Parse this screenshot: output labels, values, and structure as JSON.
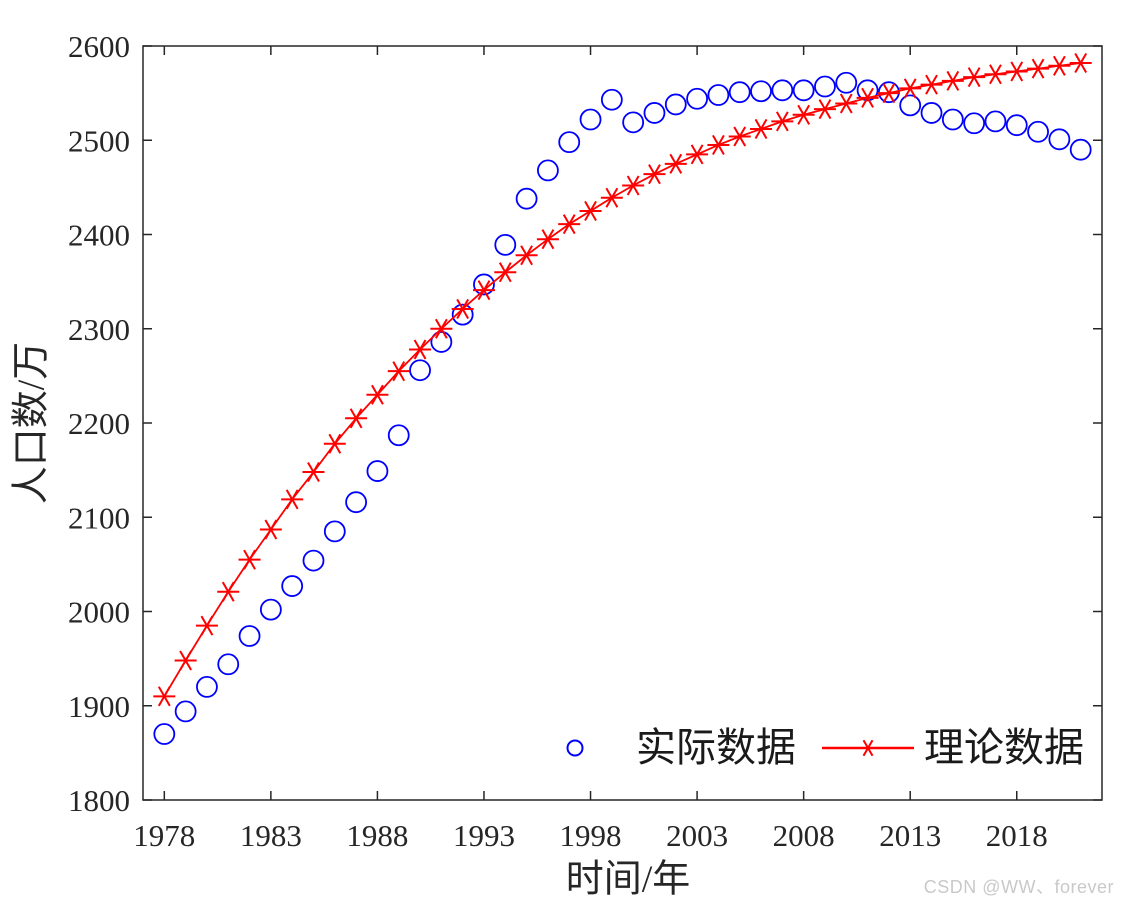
{
  "watermark": "CSDN @WW、forever",
  "colors": {
    "background": "#ffffff",
    "axis": "#262626",
    "actual": "#0000ff",
    "theory": "#ff0000",
    "watermark": "#c9c9c9"
  },
  "legend": {
    "actual_label": "实际数据",
    "theory_label": "理论数据",
    "position": "inside-bottom, no box"
  },
  "chart_data": {
    "type": "scatter",
    "title": "",
    "xlabel": "时间/年",
    "ylabel": "人口数/万",
    "xlim": [
      1977,
      2022
    ],
    "ylim": [
      1800,
      2600
    ],
    "xticks": [
      1978,
      1983,
      1988,
      1993,
      1998,
      2003,
      2008,
      2013,
      2018
    ],
    "yticks": [
      1800,
      1900,
      2000,
      2100,
      2200,
      2300,
      2400,
      2500,
      2600
    ],
    "grid": false,
    "x": [
      1978,
      1979,
      1980,
      1981,
      1982,
      1983,
      1984,
      1985,
      1986,
      1987,
      1988,
      1989,
      1990,
      1991,
      1992,
      1993,
      1994,
      1995,
      1996,
      1997,
      1998,
      1999,
      2000,
      2001,
      2002,
      2003,
      2004,
      2005,
      2006,
      2007,
      2008,
      2009,
      2010,
      2011,
      2012,
      2013,
      2014,
      2015,
      2016,
      2017,
      2018,
      2019,
      2020,
      2021
    ],
    "series": [
      {
        "name": "实际数据",
        "marker": "circle",
        "line": false,
        "color": "#0000ff",
        "values": [
          1870,
          1894,
          1920,
          1944,
          1974,
          2002,
          2027,
          2054,
          2085,
          2116,
          2149,
          2187,
          2256,
          2286,
          2315,
          2347,
          2389,
          2438,
          2468,
          2498,
          2522,
          2543,
          2519,
          2529,
          2538,
          2544,
          2548,
          2551,
          2552,
          2553,
          2553,
          2557,
          2561,
          2553,
          2551,
          2537,
          2529,
          2522,
          2518,
          2520,
          2516,
          2509,
          2501,
          2490
        ]
      },
      {
        "name": "理论数据",
        "marker": "asterisk",
        "line": true,
        "color": "#ff0000",
        "values": [
          1910,
          1948,
          1985,
          2021,
          2055,
          2087,
          2119,
          2148,
          2178,
          2205,
          2230,
          2255,
          2278,
          2300,
          2321,
          2341,
          2360,
          2378,
          2395,
          2411,
          2425,
          2439,
          2452,
          2464,
          2475,
          2485,
          2495,
          2504,
          2512,
          2520,
          2527,
          2533,
          2539,
          2545,
          2550,
          2555,
          2559,
          2563,
          2567,
          2570,
          2573,
          2576,
          2579,
          2582
        ]
      }
    ]
  }
}
